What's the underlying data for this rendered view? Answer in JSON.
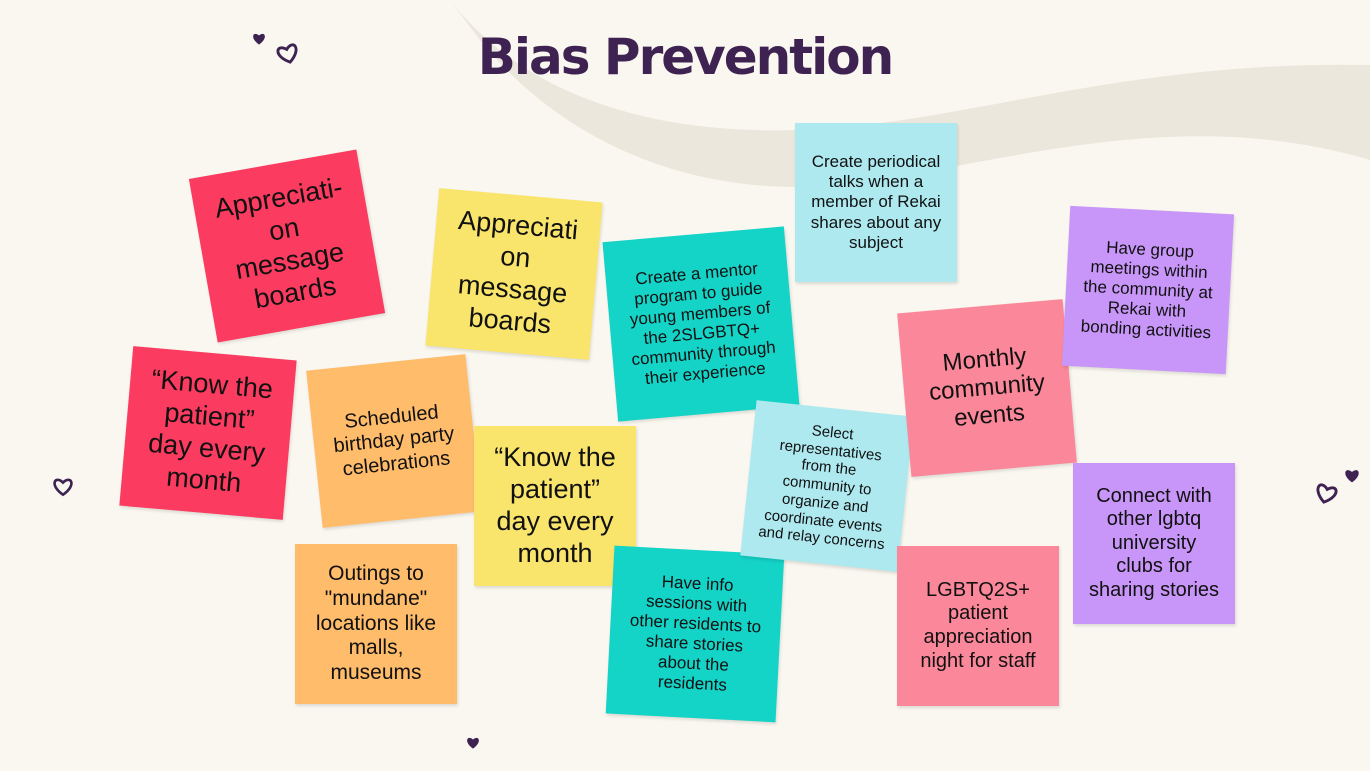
{
  "title": "Bias Prevention",
  "colors": {
    "red": "#fb3b5f",
    "yellow": "#f9e46c",
    "orange": "#ffbc6b",
    "teal": "#14d3c7",
    "lightblue": "#aee9f0",
    "purple": "#c896f8",
    "pink": "#fb889a",
    "title": "#3e2352",
    "background": "#faf7f0"
  },
  "notes": [
    {
      "id": "appreciation-red",
      "text": "Appreciati-\non\nmessage\nboards"
    },
    {
      "id": "appreciation-yellow",
      "text": "Appreciati\non\nmessage\nboards"
    },
    {
      "id": "know-patient-red",
      "text": "“Know the\npatient”\nday every\nmonth"
    },
    {
      "id": "birthday",
      "text": "Scheduled\nbirthday party\ncelebrations"
    },
    {
      "id": "know-patient-yellow",
      "text": "“Know the\npatient”\nday every\nmonth"
    },
    {
      "id": "outings",
      "text": "Outings to\n\"mundane\"\nlocations like\nmalls,\nmuseums"
    },
    {
      "id": "mentor",
      "text": "Create a mentor\nprogram to guide\nyoung members of\nthe 2SLGBTQ+\ncommunity through\ntheir experience"
    },
    {
      "id": "periodical-talks",
      "text": "Create periodical\ntalks when a\nmember of Rekai\nshares about any\nsubject"
    },
    {
      "id": "info-sessions",
      "text": "Have info\nsessions with\nother residents to\nshare stories\nabout the\nresidents"
    },
    {
      "id": "representatives",
      "text": "Select\nrepresentatives\nfrom the\ncommunity to\norganize and\ncoordinate events\nand relay concerns"
    },
    {
      "id": "monthly-events",
      "text": "Monthly\ncommunity\nevents"
    },
    {
      "id": "group-meetings",
      "text": "Have group\nmeetings within\nthe community at\nRekai with\nbonding activities"
    },
    {
      "id": "university-clubs",
      "text": "Connect with\nother lgbtq\nuniversity\nclubs for\nsharing stories"
    },
    {
      "id": "appreciation-night",
      "text": "LGBTQ2S+\npatient\nappreciation\nnight for staff"
    }
  ]
}
